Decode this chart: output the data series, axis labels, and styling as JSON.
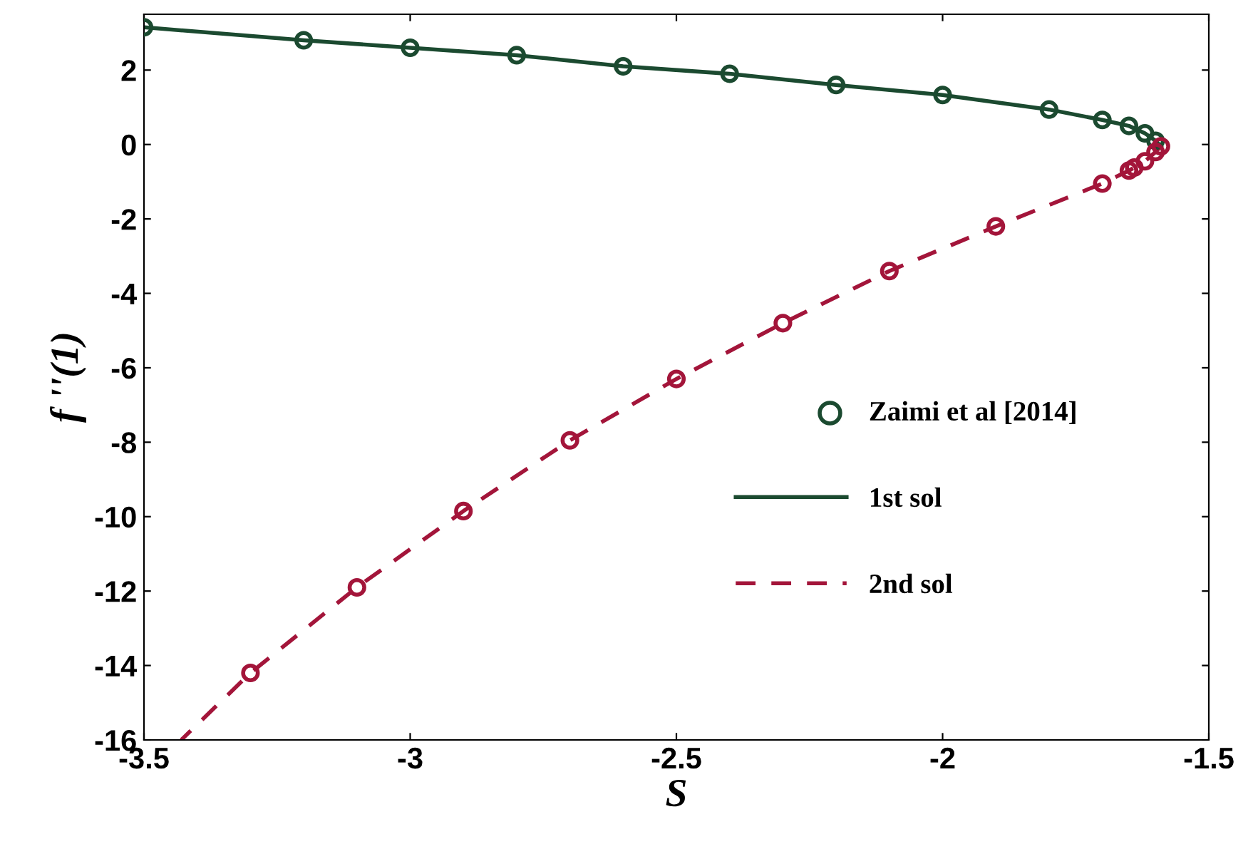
{
  "chart_data": {
    "type": "line",
    "xlabel": "S",
    "ylabel": "f ''(1)",
    "xlim": [
      -3.5,
      -1.5
    ],
    "xticks": [
      -3.5,
      -3,
      -2.5,
      -2,
      -1.5
    ],
    "ylim": [
      -16,
      3.5
    ],
    "yticks": [
      -16,
      -14,
      -12,
      -10,
      -8,
      -6,
      -4,
      -2,
      0,
      2
    ],
    "grid": false,
    "legend": "bottom right",
    "series": [
      {
        "name": "Zaimi et al [2014]",
        "type": "scatter",
        "marker": "circle",
        "color": "#1b4a30",
        "x": [
          -3.5,
          -3.2,
          -3.0,
          -2.8,
          -2.6,
          -2.4,
          -2.2,
          -2.0,
          -1.8,
          -1.7,
          -1.65,
          -1.62,
          -1.6,
          -1.59,
          -1.6,
          -1.62,
          -1.64,
          -1.65,
          -1.7,
          -1.9,
          -2.1,
          -2.3,
          -2.5,
          -2.7,
          -2.9,
          -3.1,
          -3.3
        ],
        "values": [
          3.15,
          2.8,
          2.6,
          2.4,
          2.1,
          1.9,
          1.6,
          1.33,
          0.94,
          0.66,
          0.5,
          0.3,
          0.1,
          -0.05,
          -0.2,
          -0.45,
          -0.62,
          -0.7,
          -1.05,
          -2.2,
          -3.4,
          -4.8,
          -6.3,
          -7.95,
          -9.85,
          -11.9,
          -14.2
        ],
        "colors": [
          "#1b4a30",
          "#1b4a30",
          "#1b4a30",
          "#1b4a30",
          "#1b4a30",
          "#1b4a30",
          "#1b4a30",
          "#1b4a30",
          "#1b4a30",
          "#1b4a30",
          "#1b4a30",
          "#1b4a30",
          "#1b4a30",
          "#a3153a",
          "#a3153a",
          "#a3153a",
          "#a3153a",
          "#a3153a",
          "#a3153a",
          "#a3153a",
          "#a3153a",
          "#a3153a",
          "#a3153a",
          "#a3153a",
          "#a3153a",
          "#a3153a",
          "#a3153a"
        ]
      },
      {
        "name": "1st sol",
        "line_style": "solid",
        "color": "#1b4a30",
        "x": [
          -3.5,
          -3.2,
          -3.0,
          -2.8,
          -2.6,
          -2.4,
          -2.2,
          -2.0,
          -1.8,
          -1.7,
          -1.65,
          -1.62,
          -1.6,
          -1.59
        ],
        "values": [
          3.15,
          2.8,
          2.6,
          2.4,
          2.1,
          1.9,
          1.6,
          1.33,
          0.94,
          0.66,
          0.5,
          0.3,
          0.1,
          -0.05
        ]
      },
      {
        "name": "2nd sol",
        "line_style": "dashed",
        "color": "#a3153a",
        "x": [
          -1.59,
          -1.6,
          -1.62,
          -1.64,
          -1.65,
          -1.7,
          -1.9,
          -2.1,
          -2.3,
          -2.5,
          -2.7,
          -2.9,
          -3.1,
          -3.3,
          -3.43
        ],
        "values": [
          -0.05,
          -0.2,
          -0.45,
          -0.62,
          -0.7,
          -1.05,
          -2.2,
          -3.4,
          -4.8,
          -6.3,
          -7.95,
          -9.85,
          -11.9,
          -14.2,
          -16
        ]
      }
    ]
  }
}
